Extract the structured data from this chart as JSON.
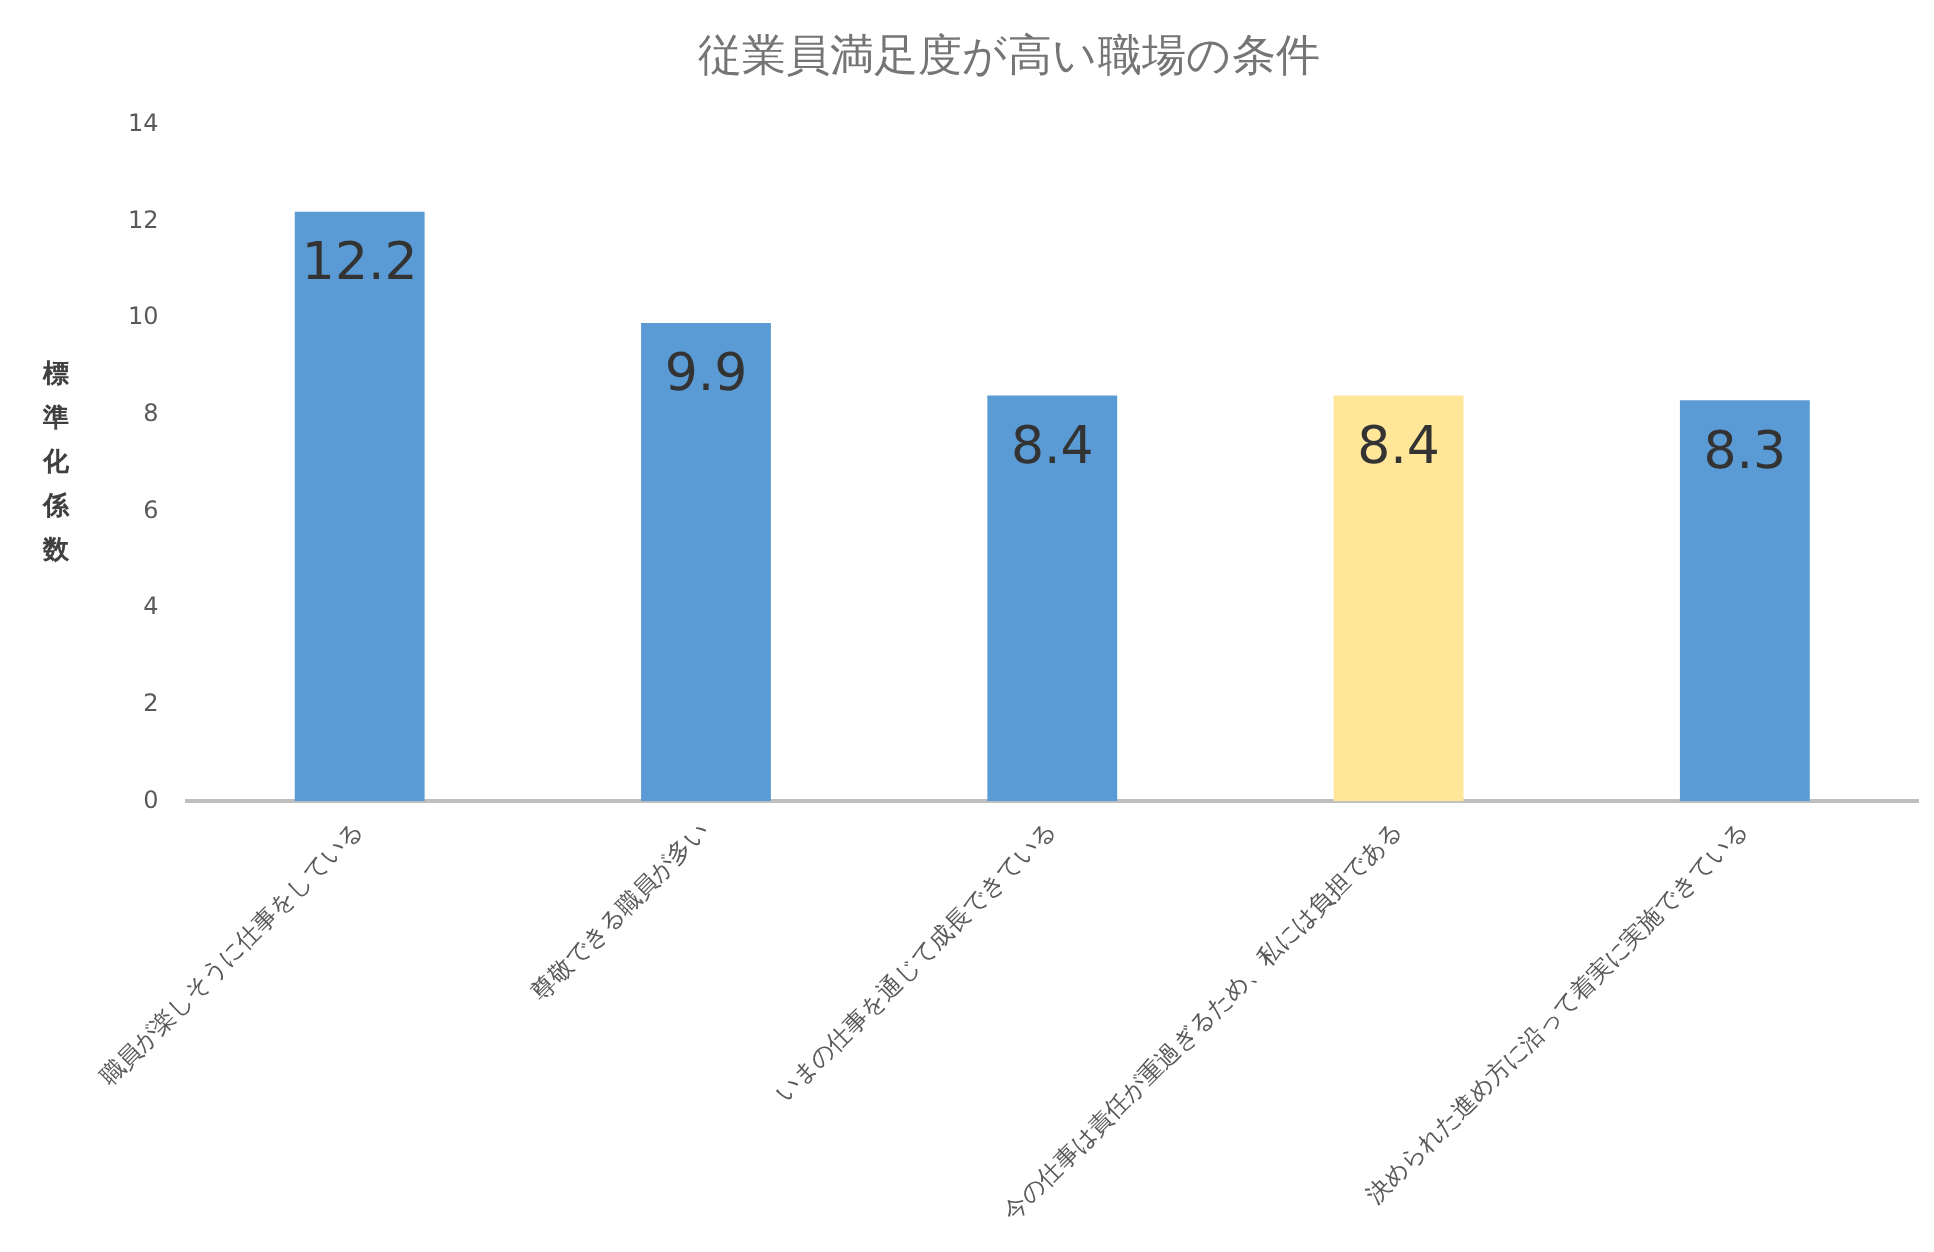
{
  "chart_data": {
    "type": "bar",
    "title": "従業員満足度が高い職場の条件",
    "ylabel": "標準化係数",
    "categories": [
      "職員が楽しそうに仕事をしている",
      "尊敬できる職員が多い",
      "いまの仕事を通じて成長できている",
      "今の仕事は責任が重過ぎるため、私には負担である",
      "決められた進め方に沿って着実に実施できている"
    ],
    "values": [
      12.2,
      9.9,
      8.4,
      8.4,
      8.3
    ],
    "colors": [
      "#5b9bd5",
      "#5b9bd5",
      "#5b9bd5",
      "#ffe699",
      "#5b9bd5"
    ],
    "ylim": [
      0,
      14
    ],
    "yticks": [
      0,
      2,
      4,
      6,
      8,
      10,
      12,
      14
    ],
    "grid": false,
    "legend": false,
    "data_labels": true
  }
}
